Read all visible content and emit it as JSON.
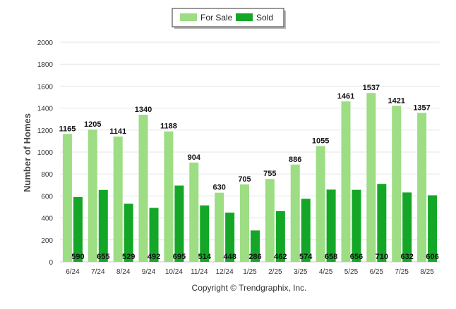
{
  "chart_data": {
    "type": "bar",
    "title": "",
    "xlabel": "",
    "ylabel": "Number of Homes",
    "ylim": [
      0,
      2000
    ],
    "yticks": [
      0,
      200,
      400,
      600,
      800,
      1000,
      1200,
      1400,
      1600,
      1800,
      2000
    ],
    "grid": true,
    "legend_position": "top-center",
    "categories": [
      "6/24",
      "7/24",
      "8/24",
      "9/24",
      "10/24",
      "11/24",
      "12/24",
      "1/25",
      "2/25",
      "3/25",
      "4/25",
      "5/25",
      "6/25",
      "7/25",
      "8/25"
    ],
    "series": [
      {
        "name": "For Sale",
        "color": "#9ddd84",
        "label_position": "above",
        "values": [
          1165,
          1205,
          1141,
          1340,
          1188,
          904,
          630,
          705,
          755,
          886,
          1055,
          1461,
          1537,
          1421,
          1357
        ]
      },
      {
        "name": "Sold",
        "color": "#14a727",
        "label_position": "inside-bottom",
        "values": [
          590,
          655,
          529,
          492,
          695,
          514,
          448,
          286,
          462,
          574,
          658,
          656,
          710,
          632,
          606
        ]
      }
    ]
  },
  "footer": {
    "copyright": "Copyright © Trendgraphix, Inc."
  }
}
